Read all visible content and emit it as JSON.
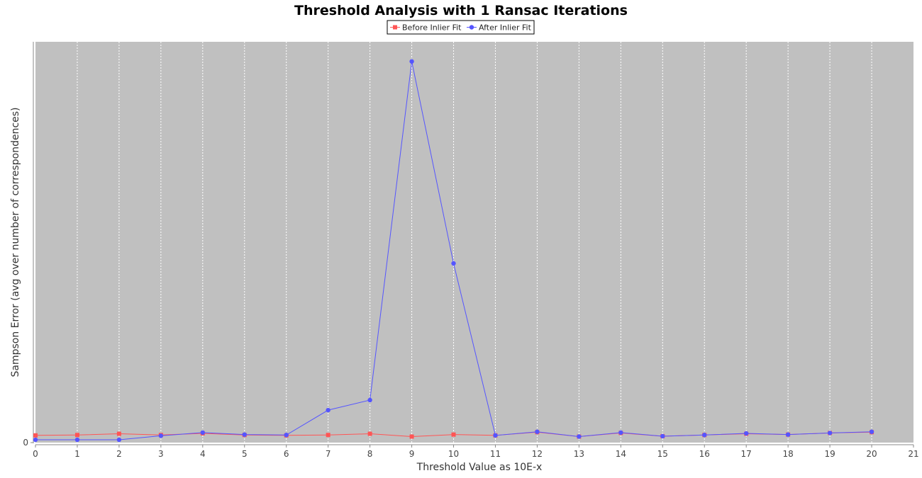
{
  "chart_data": {
    "type": "line",
    "title": "Threshold Analysis with 1 Ransac Iterations",
    "xlabel": "Threshold Value as 10E-x",
    "ylabel": "Sampson Error (avg over number of correspondences)",
    "x_ticks": [
      "0",
      "1",
      "2",
      "3",
      "4",
      "5",
      "6",
      "7",
      "8",
      "9",
      "10",
      "11",
      "12",
      "13",
      "14",
      "15",
      "16",
      "17",
      "18",
      "19",
      "20",
      "21"
    ],
    "y_ticks": [
      "0"
    ],
    "xlim": [
      0,
      21
    ],
    "ylim": [
      0,
      1
    ],
    "grid": "vertical dashed",
    "legend_position": "top-center",
    "background_color": "#c0c0c0",
    "x": [
      0,
      1,
      2,
      3,
      4,
      5,
      6,
      7,
      8,
      9,
      10,
      11,
      12,
      13,
      14,
      15,
      16,
      17,
      18,
      19,
      20
    ],
    "series": [
      {
        "name": "Before Inlier Fit",
        "color": "#ff5555",
        "marker": "square",
        "values": [
          0.018,
          0.019,
          0.022,
          0.019,
          0.023,
          0.019,
          0.018,
          0.019,
          0.022,
          0.015,
          0.02,
          0.018,
          0.026,
          0.015,
          0.024,
          0.016,
          0.019,
          0.022,
          0.02,
          0.024,
          0.026
        ]
      },
      {
        "name": "After Inlier Fit",
        "color": "#5555ff",
        "marker": "circle",
        "values": [
          0.007,
          0.007,
          0.007,
          0.017,
          0.025,
          0.02,
          0.019,
          0.081,
          0.106,
          0.951,
          0.447,
          0.018,
          0.027,
          0.015,
          0.025,
          0.016,
          0.019,
          0.023,
          0.02,
          0.024,
          0.027
        ]
      }
    ]
  }
}
